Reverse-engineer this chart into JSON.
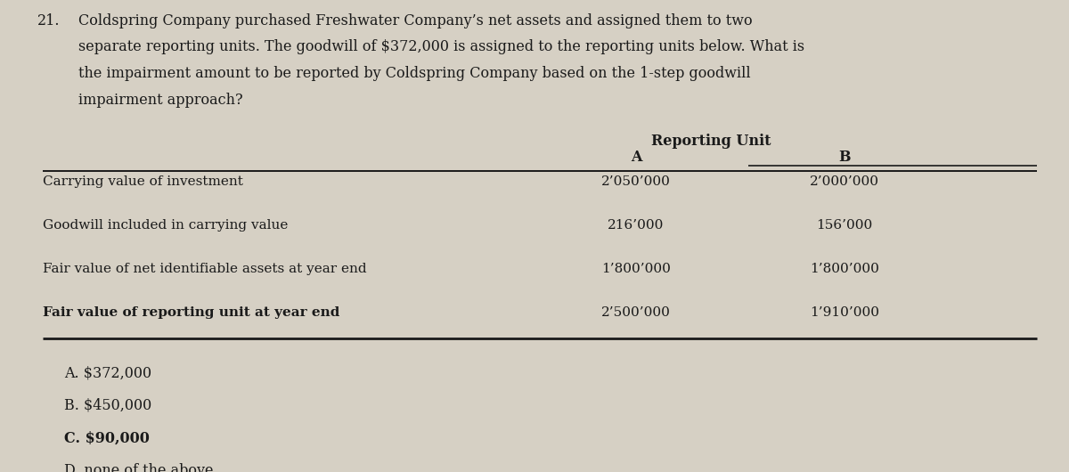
{
  "question_number": "21.",
  "question_text_line1": "Coldspring Company purchased Freshwater Company’s net assets and assigned them to two",
  "question_text_line2": "separate reporting units. The goodwill of $372,000 is assigned to the reporting units below. What is",
  "question_text_line3": "the impairment amount to be reported by Coldspring Company based on the 1-step goodwill",
  "question_text_line4": "impairment approach?",
  "table_header_center": "Reporting Unit",
  "col_a_header": "A",
  "col_b_header": "B",
  "row_labels": [
    "Carrying value of investment",
    "Goodwill included in carrying value",
    "Fair value of net identifiable assets at year end",
    "Fair value of reporting unit at year end"
  ],
  "col_a_values": [
    "2’050’000",
    "216’000",
    "1’800’000",
    "2’500’000"
  ],
  "col_b_values": [
    "2’000’000",
    "156’000",
    "1’800’000",
    "1’910’000"
  ],
  "choices": [
    "A. $372,000",
    "B. $450,000",
    "C. $90,000",
    "D. none of the above"
  ],
  "correct_choice_index": 2,
  "bg_color": "#d6d0c4",
  "text_color": "#1a1a1a",
  "font_size_question": 11.5,
  "font_size_table": 11.0,
  "font_size_choices": 11.5
}
